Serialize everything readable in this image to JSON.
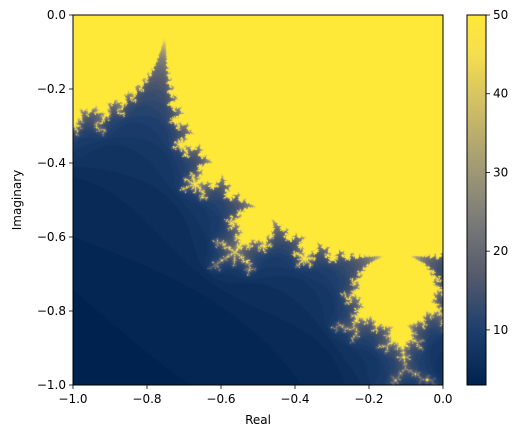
{
  "chart_data": {
    "type": "heatmap",
    "title": "",
    "xlabel": "Real",
    "ylabel": "Imaginary",
    "xlim": [
      -1.0,
      0.0
    ],
    "ylim": [
      -1.0,
      0.0
    ],
    "x_ticks": [
      -1.0,
      -0.8,
      -0.6,
      -0.4,
      -0.2,
      0.0
    ],
    "x_tick_labels": [
      "−1.0",
      "−0.8",
      "−0.6",
      "−0.4",
      "−0.2",
      "0.0"
    ],
    "y_ticks": [
      0.0,
      -0.2,
      -0.4,
      -0.6,
      -0.8,
      -1.0
    ],
    "y_tick_labels": [
      "0.0",
      "−0.2",
      "−0.4",
      "−0.6",
      "−0.8",
      "−1.0"
    ],
    "colormap": "cividis",
    "max_iterations": 50,
    "grid": false,
    "colorbar": {
      "range": [
        3,
        50
      ],
      "ticks": [
        10,
        20,
        30,
        40,
        50
      ],
      "tick_labels": [
        "10",
        "20",
        "30",
        "40",
        "50"
      ],
      "stops": [
        {
          "value": 3,
          "color": "#00224e"
        },
        {
          "value": 10,
          "color": "#1e3f6d"
        },
        {
          "value": 17,
          "color": "#555b6c"
        },
        {
          "value": 24,
          "color": "#7b7b78"
        },
        {
          "value": 31,
          "color": "#a39c74"
        },
        {
          "value": 38,
          "color": "#cebc66"
        },
        {
          "value": 45,
          "color": "#f5de4e"
        },
        {
          "value": 50,
          "color": "#fee838"
        }
      ]
    }
  }
}
